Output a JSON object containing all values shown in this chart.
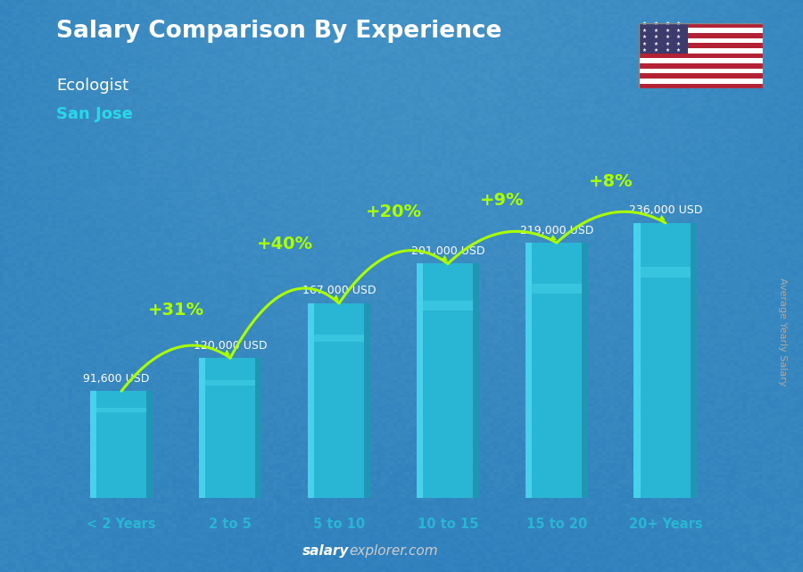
{
  "title": "Salary Comparison By Experience",
  "subtitle1": "Ecologist",
  "subtitle2": "San Jose",
  "categories": [
    "< 2 Years",
    "2 to 5",
    "5 to 10",
    "10 to 15",
    "15 to 20",
    "20+ Years"
  ],
  "values": [
    91600,
    120000,
    167000,
    201000,
    219000,
    236000
  ],
  "value_labels": [
    "91,600 USD",
    "120,000 USD",
    "167,000 USD",
    "201,000 USD",
    "219,000 USD",
    "236,000 USD"
  ],
  "pct_labels": [
    "+31%",
    "+40%",
    "+20%",
    "+9%",
    "+8%"
  ],
  "bar_color": "#29b6d4",
  "bar_color_dark": "#1a7fa0",
  "bar_color_light": "#55ddf5",
  "background_color": "#1c2f3f",
  "title_color": "#ffffff",
  "subtitle1_color": "#ffffff",
  "subtitle2_color": "#29d8e8",
  "value_label_color": "#ffffff",
  "pct_color": "#aaff00",
  "xlabel_color": "#29b6d4",
  "footer_salary_color": "#ffffff",
  "footer_explorer_color": "#cccccc",
  "ylabel_text": "Average Yearly Salary",
  "ylim": [
    0,
    285000
  ],
  "bar_width": 0.58
}
